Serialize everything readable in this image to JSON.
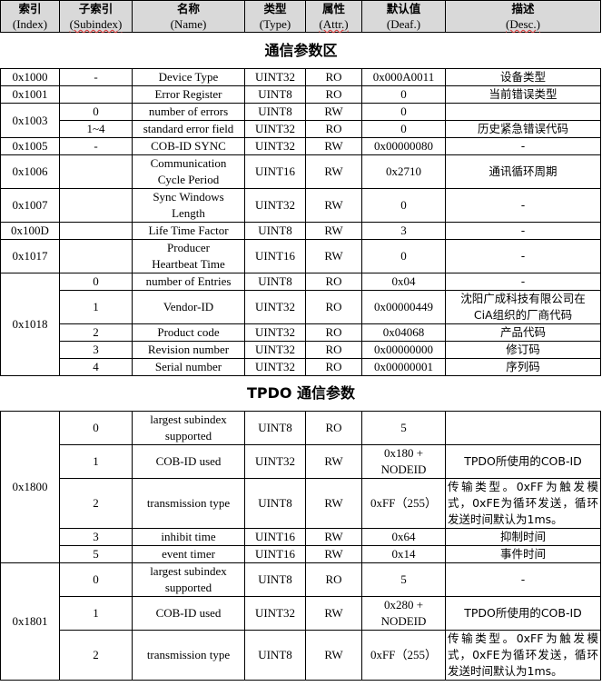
{
  "header": [
    {
      "zh": "索引",
      "en": "(Index)"
    },
    {
      "zh": "子索引",
      "en": "(Subindex)"
    },
    {
      "zh": "名称",
      "en": "(Name)"
    },
    {
      "zh": "类型",
      "en": "(Type)"
    },
    {
      "zh": "属性",
      "en": "(Attr.)"
    },
    {
      "zh": "默认值",
      "en": "(Deaf.)"
    },
    {
      "zh": "描述",
      "en": "(Desc.)"
    }
  ],
  "section1_title": "通信参数区",
  "section1": [
    {
      "index": "0x1000",
      "rows": [
        [
          "-",
          "Device Type",
          "UINT32",
          "RO",
          "0x000A0011",
          "设备类型"
        ]
      ]
    },
    {
      "index": "0x1001",
      "rows": [
        [
          "",
          "Error Register",
          "UINT8",
          "RO",
          "0",
          "当前错误类型"
        ]
      ]
    },
    {
      "index": "0x1003",
      "rows": [
        [
          "0",
          "number of errors",
          "UINT8",
          "RW",
          "0",
          ""
        ],
        [
          "1~4",
          "standard error field",
          "UINT32",
          "RO",
          "0",
          "历史紧急错误代码"
        ]
      ]
    },
    {
      "index": "0x1005",
      "rows": [
        [
          "-",
          "COB-ID SYNC",
          "UINT32",
          "RW",
          "0x00000080",
          "-"
        ]
      ]
    },
    {
      "index": "0x1006",
      "rows": [
        [
          "",
          "Communication\nCycle Period",
          "UINT16",
          "RW",
          "0x2710",
          "通讯循环周期"
        ]
      ]
    },
    {
      "index": "0x1007",
      "rows": [
        [
          "",
          "Sync Windows\nLength",
          "UINT32",
          "RW",
          "0",
          "-"
        ]
      ]
    },
    {
      "index": "0x100D",
      "rows": [
        [
          "",
          "Life Time Factor",
          "UINT8",
          "RW",
          "3",
          "-"
        ]
      ]
    },
    {
      "index": "0x1017",
      "rows": [
        [
          "",
          "Producer\nHeartbeat Time",
          "UINT16",
          "RW",
          "0",
          "-"
        ]
      ]
    },
    {
      "index": "0x1018",
      "rows": [
        [
          "0",
          "number of Entries",
          "UINT8",
          "RO",
          "0x04",
          "-"
        ],
        [
          "1",
          "Vendor-ID",
          "UINT32",
          "RO",
          "0x00000449",
          "沈阳广成科技有限公司在\nCiA组织的厂商代码"
        ],
        [
          "2",
          "Product code",
          "UINT32",
          "RO",
          "0x04068",
          "产品代码"
        ],
        [
          "3",
          "Revision number",
          "UINT32",
          "RO",
          "0x00000000",
          "修订码"
        ],
        [
          "4",
          "Serial number",
          "UINT32",
          "RO",
          "0x00000001",
          "序列码"
        ]
      ]
    }
  ],
  "section2_title": "TPDO 通信参数",
  "section2": [
    {
      "index": "0x1800",
      "rows": [
        [
          "0",
          "largest subindex\nsupported",
          "UINT8",
          "RO",
          "5",
          ""
        ],
        [
          "1",
          "COB-ID used",
          "UINT32",
          "RW",
          "0x180 +\nNODEID",
          "TPDO所使用的COB-ID"
        ],
        [
          "2",
          "transmission type",
          "UINT8",
          "RW",
          "0xFF（255）",
          "传输类型。0xFF为触发模式，0xFE为循环发送，循环发送时间默认为1ms。"
        ],
        [
          "3",
          "inhibit time",
          "UINT16",
          "RW",
          "0x64",
          "抑制时间"
        ],
        [
          "5",
          "event timer",
          "UINT16",
          "RW",
          "0x14",
          "事件时间"
        ]
      ]
    },
    {
      "index": "0x1801",
      "rows": [
        [
          "0",
          "largest subindex\nsupported",
          "UINT8",
          "RO",
          "5",
          "-"
        ],
        [
          "1",
          "COB-ID used",
          "UINT32",
          "RW",
          "0x280 +\nNODEID",
          "TPDO所使用的COB-ID"
        ],
        [
          "2",
          "transmission type",
          "UINT8",
          "RW",
          "0xFF（255）",
          "传输类型。0xFF为触发模式，0xFE为循环发送，循环发送时间默认为1ms。"
        ]
      ]
    }
  ]
}
